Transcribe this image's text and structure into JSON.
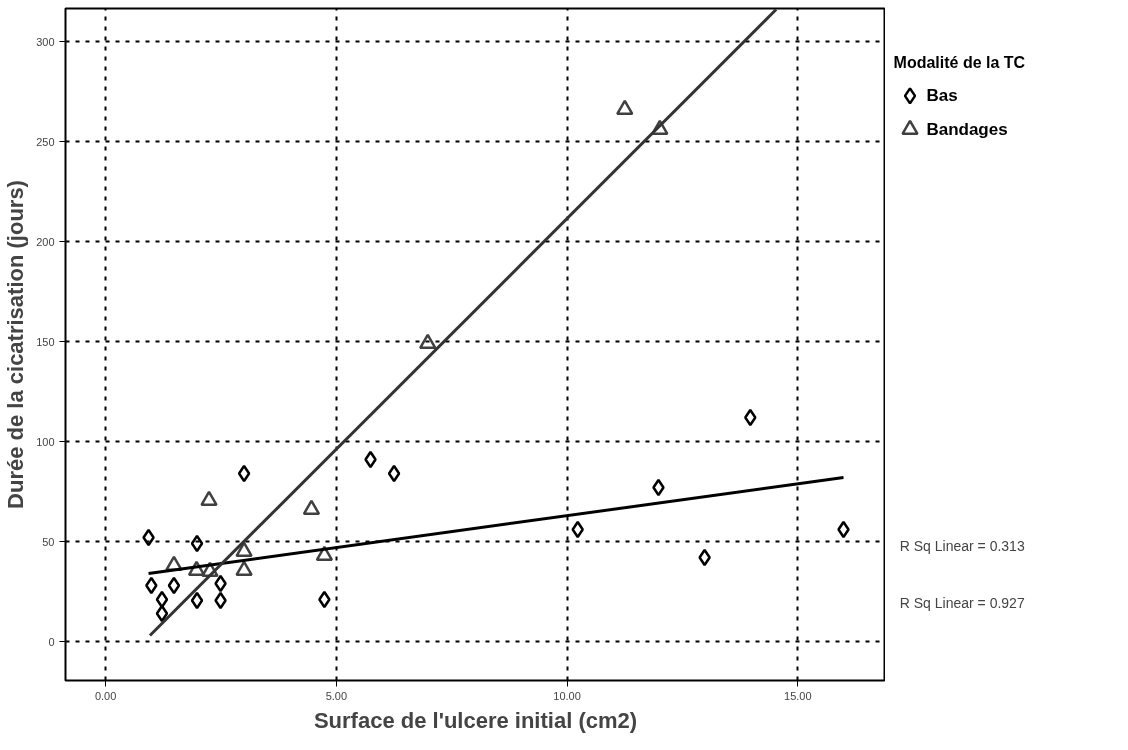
{
  "chart_data": {
    "type": "scatter",
    "xlabel": "Surface de l'ulcere initial (cm2)",
    "ylabel": "Durée de la cicatrisation (jours)",
    "legend_title": "Modalité de la TC",
    "legend": "top right",
    "grid": true,
    "xlim": [
      -0.87,
      16.9
    ],
    "ylim": [
      -19.5,
      316.5
    ],
    "xticks": [
      {
        "value": 0,
        "label": "0.00"
      },
      {
        "value": 5,
        "label": "5.00"
      },
      {
        "value": 10,
        "label": "10.00"
      },
      {
        "value": 15,
        "label": "15.00"
      }
    ],
    "yticks": [
      0,
      50,
      100,
      150,
      200,
      250,
      300
    ],
    "series": [
      {
        "name": "Bas",
        "color": "#000000",
        "marker": "diamond",
        "x": [
          0.93,
          1.98,
          3.0,
          0.99,
          1.48,
          1.22,
          1.22,
          1.98,
          2.49,
          2.49,
          4.74,
          5.74,
          6.25,
          10.23,
          11.98,
          12.98,
          13.97,
          15.99
        ],
        "values": [
          52,
          49,
          84,
          28,
          28,
          21,
          14,
          20.5,
          20.5,
          29,
          21,
          91,
          84,
          56,
          77,
          42,
          112,
          56
        ]
      },
      {
        "name": "Bandages",
        "color": "#404040",
        "marker": "triangle",
        "x": [
          2.24,
          4.46,
          3.0,
          3.0,
          4.74,
          1.48,
          1.97,
          2.26,
          6.98,
          11.25,
          12.01
        ],
        "values": [
          70.5,
          66,
          45,
          35.5,
          43,
          38,
          35.5,
          35,
          149,
          266,
          256
        ]
      },
      {
        "type": "line",
        "color": "#000000",
        "x": [
          0.93,
          15.99
        ],
        "values": [
          34,
          82
        ]
      },
      {
        "type": "line",
        "color": "#333333",
        "x": [
          0.96,
          14.53
        ],
        "values": [
          3,
          316
        ]
      }
    ],
    "annotations": [
      "R Sq Linear = 0.313",
      "R Sq Linear = 0.927"
    ]
  }
}
